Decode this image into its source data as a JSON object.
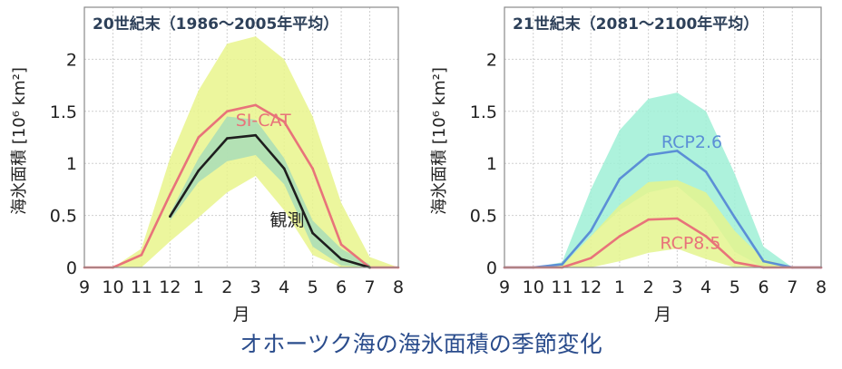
{
  "caption": "オホーツク海の海氷面積の季節変化",
  "chart_data": [
    {
      "type": "line",
      "title": "20世紀末（1986〜2005年平均）",
      "xlabel": "月",
      "ylabel": "海氷面積 [10⁶ km²]",
      "x_ticks": [
        "9",
        "10",
        "11",
        "12",
        "1",
        "2",
        "3",
        "4",
        "5",
        "6",
        "7",
        "8"
      ],
      "ylim": [
        0,
        2.5
      ],
      "y_ticks": [
        0,
        0.5,
        1,
        1.5,
        2
      ],
      "y_tick_labels": [
        "0",
        "0.5",
        "1",
        "1.5",
        "2"
      ],
      "grid": true,
      "bands": [
        {
          "color": "#e9f58c",
          "upper": [
            0,
            0,
            0.18,
            1.05,
            1.7,
            2.15,
            2.22,
            2.0,
            1.45,
            0.62,
            0.1,
            0
          ],
          "lower": [
            0,
            0,
            0,
            0.25,
            0.48,
            0.72,
            0.88,
            0.55,
            0.12,
            0,
            0,
            0
          ]
        },
        {
          "color": "#a9ddb9",
          "upper": [
            null,
            null,
            null,
            0.52,
            1.05,
            1.45,
            1.42,
            1.05,
            0.45,
            0.18,
            0.03,
            null
          ],
          "lower": [
            null,
            null,
            null,
            0.45,
            0.82,
            1.02,
            1.08,
            0.8,
            0.2,
            0.02,
            0,
            null
          ]
        }
      ],
      "series": [
        {
          "color": "#e8737a",
          "values": [
            0,
            0,
            0.12,
            0.7,
            1.25,
            1.5,
            1.56,
            1.4,
            0.95,
            0.22,
            0,
            0
          ]
        },
        {
          "color": "#1e1e1e",
          "values": [
            null,
            null,
            null,
            0.49,
            0.93,
            1.24,
            1.27,
            0.95,
            0.33,
            0.08,
            0,
            null
          ]
        }
      ],
      "annotations": [
        {
          "text": "SI-CAT",
          "color": "#e8737a",
          "x": 5.3,
          "y": 1.36
        },
        {
          "text": "観測",
          "color": "#222222",
          "x": 6.5,
          "y": 0.4
        }
      ]
    },
    {
      "type": "line",
      "title": "21世紀末（2081〜2100年平均）",
      "xlabel": "月",
      "ylabel": "海氷面積 [10⁶ km²]",
      "x_ticks": [
        "9",
        "10",
        "11",
        "12",
        "1",
        "2",
        "3",
        "4",
        "5",
        "6",
        "7",
        "8"
      ],
      "ylim": [
        0,
        2.5
      ],
      "y_ticks": [
        0,
        0.5,
        1,
        1.5,
        2
      ],
      "y_tick_labels": [
        "0",
        "0.5",
        "1",
        "1.5",
        "2"
      ],
      "grid": true,
      "bands": [
        {
          "color": "#9ff0d6",
          "upper": [
            0,
            0,
            0.05,
            0.75,
            1.32,
            1.62,
            1.68,
            1.5,
            0.9,
            0.2,
            0,
            0
          ],
          "lower": [
            0,
            0,
            0,
            0.3,
            0.55,
            0.72,
            0.78,
            0.55,
            0.15,
            0,
            0,
            0
          ]
        },
        {
          "color": "#e4f48e",
          "upper": [
            0,
            0,
            0.02,
            0.3,
            0.6,
            0.82,
            0.84,
            0.72,
            0.35,
            0.08,
            0,
            0
          ],
          "lower": [
            0,
            0,
            0,
            0,
            0.06,
            0.14,
            0.18,
            0.08,
            0,
            0,
            0,
            0
          ]
        }
      ],
      "series": [
        {
          "color": "#5b8fd6",
          "values": [
            0,
            0,
            0.03,
            0.35,
            0.85,
            1.08,
            1.12,
            0.92,
            0.48,
            0.06,
            0,
            0
          ]
        },
        {
          "color": "#e8737a",
          "values": [
            0,
            0,
            0,
            0.09,
            0.3,
            0.46,
            0.47,
            0.3,
            0.05,
            0,
            0,
            0
          ]
        }
      ],
      "annotations": [
        {
          "text": "RCP2.6",
          "color": "#5b8fd6",
          "x": 5.45,
          "y": 1.15
        },
        {
          "text": "RCP8.5",
          "color": "#e8737a",
          "x": 5.4,
          "y": 0.18
        }
      ]
    }
  ]
}
